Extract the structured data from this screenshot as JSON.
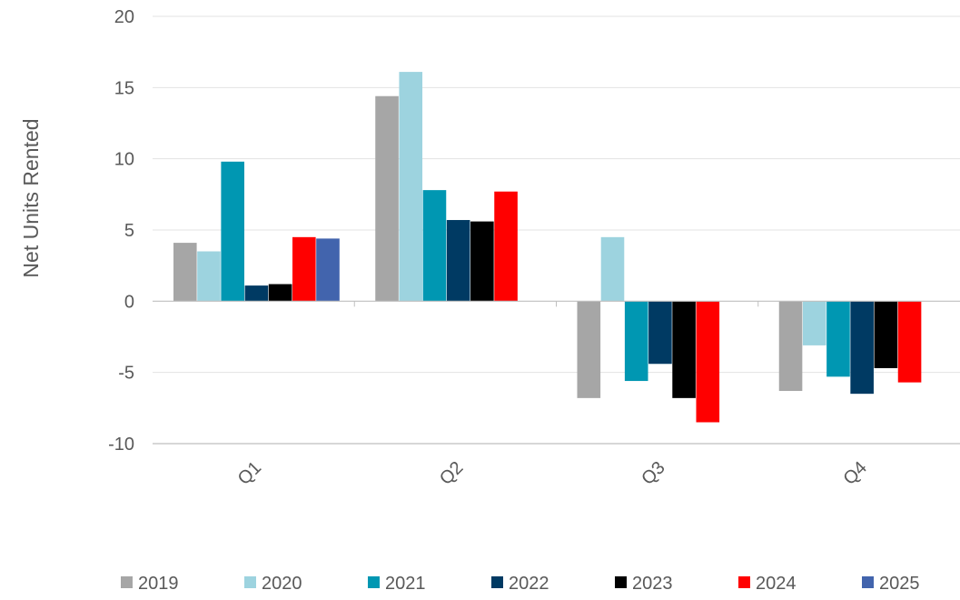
{
  "chart_data": {
    "type": "bar",
    "title": "",
    "xlabel": "",
    "ylabel": "Net Units Rented",
    "ylim": [
      -10,
      20
    ],
    "y_ticks": [
      "20",
      "15",
      "10",
      "5",
      "0",
      "-5",
      "-10"
    ],
    "y_tick_values": [
      20,
      15,
      10,
      5,
      0,
      -5,
      -10
    ],
    "categories": [
      "Q1",
      "Q2",
      "Q3",
      "Q4"
    ],
    "grid": true,
    "legend_position": "bottom",
    "series": [
      {
        "name": "2019",
        "color": "#A6A6A6",
        "values": [
          4.1,
          14.4,
          -6.8,
          -6.3
        ]
      },
      {
        "name": "2020",
        "color": "#9DD3DF",
        "values": [
          3.5,
          16.1,
          4.5,
          -3.1
        ]
      },
      {
        "name": "2021",
        "color": "#0097B2",
        "values": [
          9.8,
          7.8,
          -5.6,
          -5.3
        ]
      },
      {
        "name": "2022",
        "color": "#003A63",
        "values": [
          1.1,
          5.7,
          -4.4,
          -6.5
        ]
      },
      {
        "name": "2023",
        "color": "#000000",
        "values": [
          1.2,
          5.6,
          -6.8,
          -4.7
        ]
      },
      {
        "name": "2024",
        "color": "#FF0000",
        "values": [
          4.5,
          7.7,
          -8.5,
          -5.7
        ]
      },
      {
        "name": "2025",
        "color": "#4264AD",
        "values": [
          4.4,
          null,
          null,
          null
        ]
      }
    ]
  }
}
